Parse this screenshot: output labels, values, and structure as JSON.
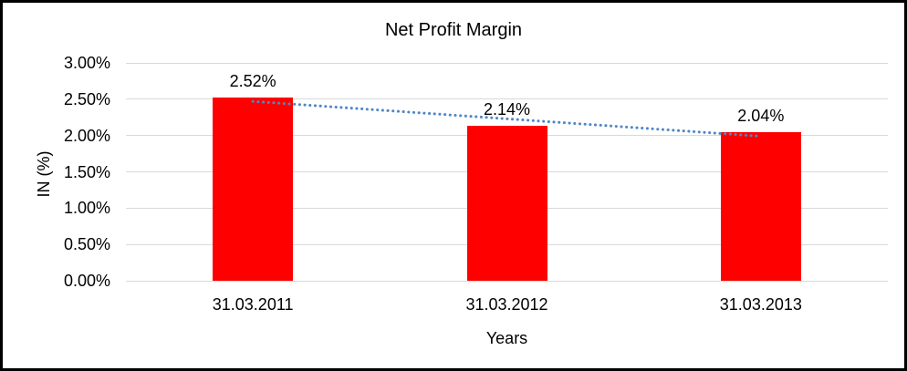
{
  "chart_data": {
    "type": "bar",
    "title": "Net Profit Margin",
    "categories": [
      "31.03.2011",
      "31.03.2012",
      "31.03.2013"
    ],
    "values": [
      2.52,
      2.14,
      2.04
    ],
    "data_labels": [
      "2.52%",
      "2.14%",
      "2.04%"
    ],
    "xlabel": "Years",
    "ylabel": "IN (%)",
    "ylim": [
      0,
      3
    ],
    "yticks": [
      0,
      0.5,
      1,
      1.5,
      2,
      2.5,
      3
    ],
    "ytick_labels": [
      "0.00%",
      "0.50%",
      "1.00%",
      "1.50%",
      "2.00%",
      "2.50%",
      "3.00%"
    ],
    "grid": true,
    "legend": false,
    "bar_color": "#ff0000",
    "gridline_color": "#d9d9d9",
    "text_color": "#000000",
    "border_color": "#000000",
    "trendline": {
      "type": "linear",
      "style": "dotted",
      "color": "#4e86c8",
      "start_value": 2.47,
      "end_value": 1.99
    }
  }
}
